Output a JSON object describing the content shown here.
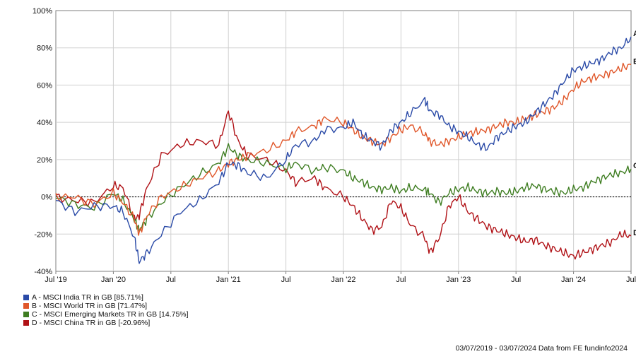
{
  "chart_data": {
    "type": "line",
    "y_ticks": [
      "100%",
      "80%",
      "60%",
      "40%",
      "20%",
      "0%",
      "-20%",
      "-40%"
    ],
    "ylim": [
      -40,
      100
    ],
    "x_ticks": [
      "Jul '19",
      "Jan '20",
      "Jul",
      "Jan '21",
      "Jul",
      "Jan '22",
      "Jul",
      "Jan '23",
      "Jul",
      "Jan '24",
      "Jul"
    ],
    "x_tick_months": [
      0,
      6,
      12,
      18,
      24,
      30,
      36,
      42,
      48,
      54,
      60
    ],
    "xlim_months": [
      0,
      60
    ],
    "grid": true,
    "zero_line": "dotted",
    "series": [
      {
        "letter": "A",
        "name": "A - MSCI India TR in GB [85.71%]",
        "color": "#2a4aa7",
        "x_months": [
          0,
          2,
          4,
          6,
          7,
          8.2,
          8.7,
          9.5,
          11,
          13,
          15,
          17,
          18,
          19,
          20,
          22,
          24,
          25,
          27,
          28,
          30,
          31,
          32,
          33,
          34,
          35,
          36,
          37,
          38.5,
          39,
          40,
          41,
          42,
          43,
          44,
          45,
          46,
          47,
          48,
          49,
          50,
          51,
          52,
          53,
          54,
          55,
          56,
          57,
          58,
          59,
          60
        ],
        "values": [
          -2,
          -8,
          -5,
          -5,
          -8,
          -22,
          -35,
          -30,
          -20,
          -8,
          -2,
          8,
          18,
          17,
          13,
          10,
          20,
          28,
          30,
          36,
          37,
          40,
          33,
          30,
          27,
          36,
          40,
          45,
          52,
          46,
          44,
          38,
          35,
          32,
          28,
          26,
          32,
          35,
          38,
          40,
          45,
          50,
          55,
          62,
          68,
          70,
          72,
          74,
          78,
          80,
          86
        ]
      },
      {
        "letter": "B",
        "name": "B - MSCI World TR in GB [71.47%]",
        "color": "#e0572a",
        "x_months": [
          0,
          2,
          4,
          6,
          7,
          8.2,
          8.7,
          9.5,
          11,
          13,
          15,
          17,
          18,
          19,
          20,
          22,
          24,
          25,
          27,
          28,
          30,
          31,
          32,
          33,
          34,
          35,
          36,
          37,
          38.5,
          39,
          40,
          41,
          42,
          43,
          44,
          45,
          46,
          47,
          48,
          49,
          50,
          51,
          52,
          53,
          54,
          55,
          56,
          57,
          58,
          59,
          60
        ],
        "values": [
          0,
          0,
          -4,
          2,
          -3,
          -12,
          -20,
          -10,
          0,
          5,
          10,
          14,
          18,
          20,
          22,
          25,
          30,
          35,
          38,
          42,
          40,
          36,
          32,
          30,
          28,
          32,
          36,
          38,
          34,
          30,
          28,
          30,
          32,
          34,
          35,
          36,
          38,
          40,
          40,
          42,
          44,
          46,
          48,
          52,
          58,
          62,
          64,
          65,
          67,
          69,
          71
        ]
      },
      {
        "letter": "C",
        "name": "C - MSCI Emerging Markets TR in GB [14.75%]",
        "color": "#3e7d21",
        "x_months": [
          0,
          2,
          4,
          6,
          7,
          8.2,
          8.7,
          9.5,
          11,
          13,
          15,
          17,
          18,
          19,
          20,
          22,
          24,
          25,
          27,
          28,
          30,
          31,
          32,
          33,
          34,
          35,
          36,
          37,
          38.5,
          39,
          40,
          41,
          42,
          43,
          44,
          45,
          46,
          47,
          48,
          49,
          50,
          51,
          52,
          53,
          54,
          55,
          56,
          57,
          58,
          59,
          60
        ],
        "values": [
          0,
          -4,
          -6,
          2,
          -2,
          -12,
          -18,
          -12,
          -3,
          5,
          12,
          18,
          27,
          22,
          20,
          18,
          15,
          18,
          14,
          16,
          14,
          10,
          8,
          5,
          4,
          5,
          3,
          5,
          4,
          2,
          -3,
          2,
          4,
          5,
          3,
          2,
          3,
          2,
          3,
          5,
          6,
          4,
          3,
          2,
          4,
          5,
          8,
          10,
          12,
          13,
          15
        ]
      },
      {
        "letter": "D",
        "name": "D - MSCI China TR in GB [-20.96%]",
        "color": "#b01116",
        "x_months": [
          0,
          2,
          4,
          6,
          7,
          8.2,
          8.7,
          9.5,
          11,
          13,
          15,
          17,
          18,
          19,
          20,
          22,
          24,
          25,
          27,
          28,
          30,
          31,
          32,
          33,
          34,
          35,
          36,
          37,
          38.5,
          39,
          40,
          41,
          42,
          43,
          44,
          45,
          46,
          47,
          48,
          49,
          50,
          51,
          52,
          53,
          54,
          55,
          56,
          57,
          58,
          59,
          60
        ],
        "values": [
          0,
          -2,
          -3,
          6,
          5,
          -12,
          -10,
          5,
          22,
          28,
          30,
          28,
          46,
          30,
          22,
          20,
          14,
          8,
          10,
          5,
          0,
          -5,
          -12,
          -18,
          -16,
          -2,
          -6,
          -15,
          -22,
          -30,
          -22,
          -5,
          0,
          -8,
          -12,
          -16,
          -18,
          -20,
          -22,
          -24,
          -23,
          -26,
          -28,
          -30,
          -32,
          -30,
          -28,
          -26,
          -24,
          -20,
          -21
        ]
      }
    ],
    "footer": "03/07/2019 - 03/07/2024 Data from FE fundinfo2024"
  }
}
